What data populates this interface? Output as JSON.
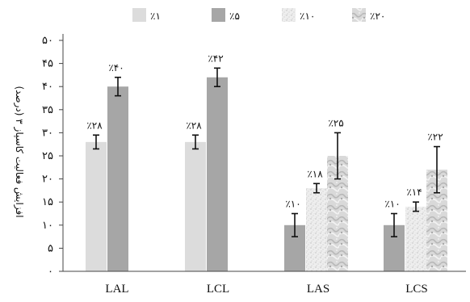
{
  "chart_data": {
    "type": "bar",
    "categories": [
      "LAL",
      "LCL",
      "LAS",
      "LCS"
    ],
    "series": [
      {
        "name": "٪۱",
        "fill": "#dcdcdc",
        "pattern": "solid",
        "values": [
          28,
          28,
          null,
          null
        ],
        "errors": [
          1.5,
          1.5,
          null,
          null
        ],
        "labels": [
          "٪۲۸",
          "٪۲۸",
          "",
          ""
        ]
      },
      {
        "name": "٪۵",
        "fill": "#a6a6a6",
        "pattern": "solid",
        "values": [
          40,
          42,
          10,
          10
        ],
        "errors": [
          2,
          2,
          2.5,
          2.5
        ],
        "labels": [
          "٪۴۰",
          "٪۴۲",
          "٪۱۰",
          "٪۱۰"
        ]
      },
      {
        "name": "٪۱۰",
        "fill": "#eeeeee",
        "pattern": "speckle",
        "values": [
          null,
          null,
          18,
          14
        ],
        "errors": [
          null,
          null,
          1,
          1
        ],
        "labels": [
          "",
          "",
          "٪۱۸",
          "٪۱۴"
        ]
      },
      {
        "name": "٪۲۰",
        "fill": "#cfcfcf",
        "pattern": "marble",
        "values": [
          null,
          null,
          25,
          22
        ],
        "errors": [
          null,
          null,
          5,
          5
        ],
        "labels": [
          "",
          "",
          "٪۲۵",
          "٪۲۲"
        ]
      }
    ],
    "ylabel": "افزایش فعالیت کاسپاز ۳ (درصد)",
    "ylim": [
      0,
      50
    ],
    "yticks": [
      0,
      5,
      10,
      15,
      20,
      25,
      30,
      35,
      40,
      45,
      50
    ],
    "ytick_labels": [
      "۰",
      "۵",
      "۱۰",
      "۱۵",
      "۲۰",
      "۲۵",
      "۳۰",
      "۳۵",
      "۴۰",
      "۴۵",
      "۵۰"
    ],
    "grid": false,
    "legend": "top"
  }
}
